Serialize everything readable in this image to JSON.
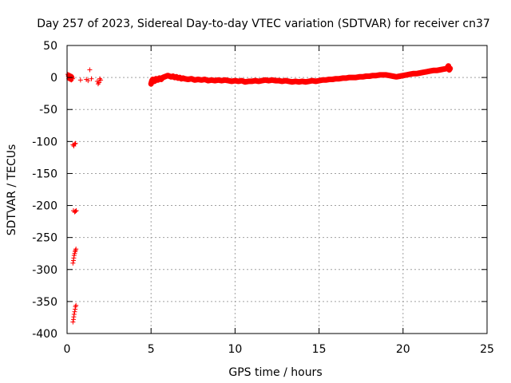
{
  "chart_data": {
    "type": "scatter",
    "title": "Day 257 of 2023, Sidereal Day-to-day VTEC variation (SDTVAR) for receiver cn37",
    "xlabel": "GPS time / hours",
    "ylabel": "SDTVAR / TECUs",
    "xlim": [
      0,
      25
    ],
    "ylim": [
      -400,
      50
    ],
    "xticks": [
      0,
      5,
      10,
      15,
      20,
      25
    ],
    "yticks": [
      50,
      0,
      -50,
      -100,
      -150,
      -200,
      -250,
      -300,
      -350,
      -400
    ],
    "grid": true,
    "marker": "+",
    "colors": {
      "series": "#ff0000",
      "axes": "#000000",
      "grid": "#a0a0a0"
    },
    "series": [
      {
        "name": "SDTVAR",
        "points": [
          [
            0.05,
            5
          ],
          [
            0.08,
            2
          ],
          [
            0.1,
            -2
          ],
          [
            0.12,
            4
          ],
          [
            0.15,
            0
          ],
          [
            0.18,
            -3
          ],
          [
            0.2,
            3
          ],
          [
            0.22,
            1
          ],
          [
            0.25,
            -4
          ],
          [
            0.28,
            2
          ],
          [
            0.3,
            0
          ],
          [
            0.33,
            -2
          ],
          [
            0.35,
            -105
          ],
          [
            0.4,
            -107
          ],
          [
            0.45,
            -104
          ],
          [
            0.5,
            -103
          ],
          [
            0.38,
            -208
          ],
          [
            0.45,
            -210
          ],
          [
            0.5,
            -209
          ],
          [
            0.55,
            -208
          ],
          [
            0.35,
            -290
          ],
          [
            0.38,
            -286
          ],
          [
            0.4,
            -282
          ],
          [
            0.42,
            -278
          ],
          [
            0.45,
            -275
          ],
          [
            0.48,
            -272
          ],
          [
            0.5,
            -270
          ],
          [
            0.53,
            -268
          ],
          [
            0.35,
            -382
          ],
          [
            0.38,
            -378
          ],
          [
            0.4,
            -374
          ],
          [
            0.42,
            -370
          ],
          [
            0.45,
            -366
          ],
          [
            0.48,
            -362
          ],
          [
            0.5,
            -358
          ],
          [
            0.53,
            -356
          ],
          [
            0.8,
            -4
          ],
          [
            1.15,
            -3
          ],
          [
            1.25,
            -5
          ],
          [
            1.35,
            12
          ],
          [
            1.45,
            -2
          ],
          [
            1.8,
            -6
          ],
          [
            1.85,
            -10
          ],
          [
            1.9,
            -8
          ],
          [
            1.95,
            -2
          ],
          [
            2.0,
            -4
          ],
          [
            5.0,
            -10
          ],
          [
            5.05,
            -5
          ],
          [
            5.1,
            -3
          ],
          [
            5.2,
            -6
          ],
          [
            5.3,
            -2
          ],
          [
            5.4,
            -4
          ],
          [
            5.5,
            -1
          ],
          [
            5.6,
            -3
          ],
          [
            5.7,
            0
          ],
          [
            5.8,
            1
          ],
          [
            5.9,
            2
          ],
          [
            6.0,
            3
          ],
          [
            6.1,
            2
          ],
          [
            6.2,
            1
          ],
          [
            6.3,
            2
          ],
          [
            6.4,
            0
          ],
          [
            6.5,
            1
          ],
          [
            6.6,
            -1
          ],
          [
            6.7,
            0
          ],
          [
            6.8,
            -2
          ],
          [
            6.9,
            -1
          ],
          [
            7.0,
            -2
          ],
          [
            7.2,
            -3
          ],
          [
            7.4,
            -2
          ],
          [
            7.6,
            -4
          ],
          [
            7.8,
            -3
          ],
          [
            8.0,
            -4
          ],
          [
            8.2,
            -3
          ],
          [
            8.4,
            -5
          ],
          [
            8.6,
            -4
          ],
          [
            8.8,
            -5
          ],
          [
            9.0,
            -4
          ],
          [
            9.2,
            -5
          ],
          [
            9.4,
            -4
          ],
          [
            9.6,
            -5
          ],
          [
            9.8,
            -6
          ],
          [
            10.0,
            -5
          ],
          [
            10.2,
            -6
          ],
          [
            10.4,
            -5
          ],
          [
            10.6,
            -7
          ],
          [
            10.8,
            -6
          ],
          [
            11.0,
            -6
          ],
          [
            11.2,
            -5
          ],
          [
            11.4,
            -6
          ],
          [
            11.6,
            -5
          ],
          [
            11.8,
            -4
          ],
          [
            12.0,
            -5
          ],
          [
            12.2,
            -4
          ],
          [
            12.4,
            -5
          ],
          [
            12.6,
            -5
          ],
          [
            12.8,
            -6
          ],
          [
            13.0,
            -5
          ],
          [
            13.2,
            -6
          ],
          [
            13.4,
            -7
          ],
          [
            13.6,
            -6
          ],
          [
            13.8,
            -7
          ],
          [
            14.0,
            -6
          ],
          [
            14.2,
            -7
          ],
          [
            14.4,
            -6
          ],
          [
            14.6,
            -5
          ],
          [
            14.8,
            -6
          ],
          [
            15.0,
            -5
          ],
          [
            15.2,
            -4
          ],
          [
            15.4,
            -4
          ],
          [
            15.6,
            -3
          ],
          [
            15.8,
            -3
          ],
          [
            16.0,
            -2
          ],
          [
            16.2,
            -2
          ],
          [
            16.4,
            -1
          ],
          [
            16.6,
            -1
          ],
          [
            16.8,
            0
          ],
          [
            17.0,
            0
          ],
          [
            17.2,
            0
          ],
          [
            17.4,
            1
          ],
          [
            17.6,
            1
          ],
          [
            17.8,
            2
          ],
          [
            18.0,
            2
          ],
          [
            18.2,
            3
          ],
          [
            18.4,
            3
          ],
          [
            18.6,
            4
          ],
          [
            18.8,
            4
          ],
          [
            19.0,
            4
          ],
          [
            19.2,
            3
          ],
          [
            19.4,
            2
          ],
          [
            19.6,
            1
          ],
          [
            19.8,
            2
          ],
          [
            20.0,
            3
          ],
          [
            20.2,
            4
          ],
          [
            20.4,
            5
          ],
          [
            20.6,
            6
          ],
          [
            20.8,
            6
          ],
          [
            21.0,
            7
          ],
          [
            21.2,
            8
          ],
          [
            21.4,
            9
          ],
          [
            21.6,
            10
          ],
          [
            21.8,
            11
          ],
          [
            22.0,
            11
          ],
          [
            22.2,
            12
          ],
          [
            22.4,
            13
          ],
          [
            22.6,
            14
          ],
          [
            22.7,
            18
          ],
          [
            22.75,
            12
          ],
          [
            22.8,
            14
          ]
        ]
      }
    ]
  }
}
